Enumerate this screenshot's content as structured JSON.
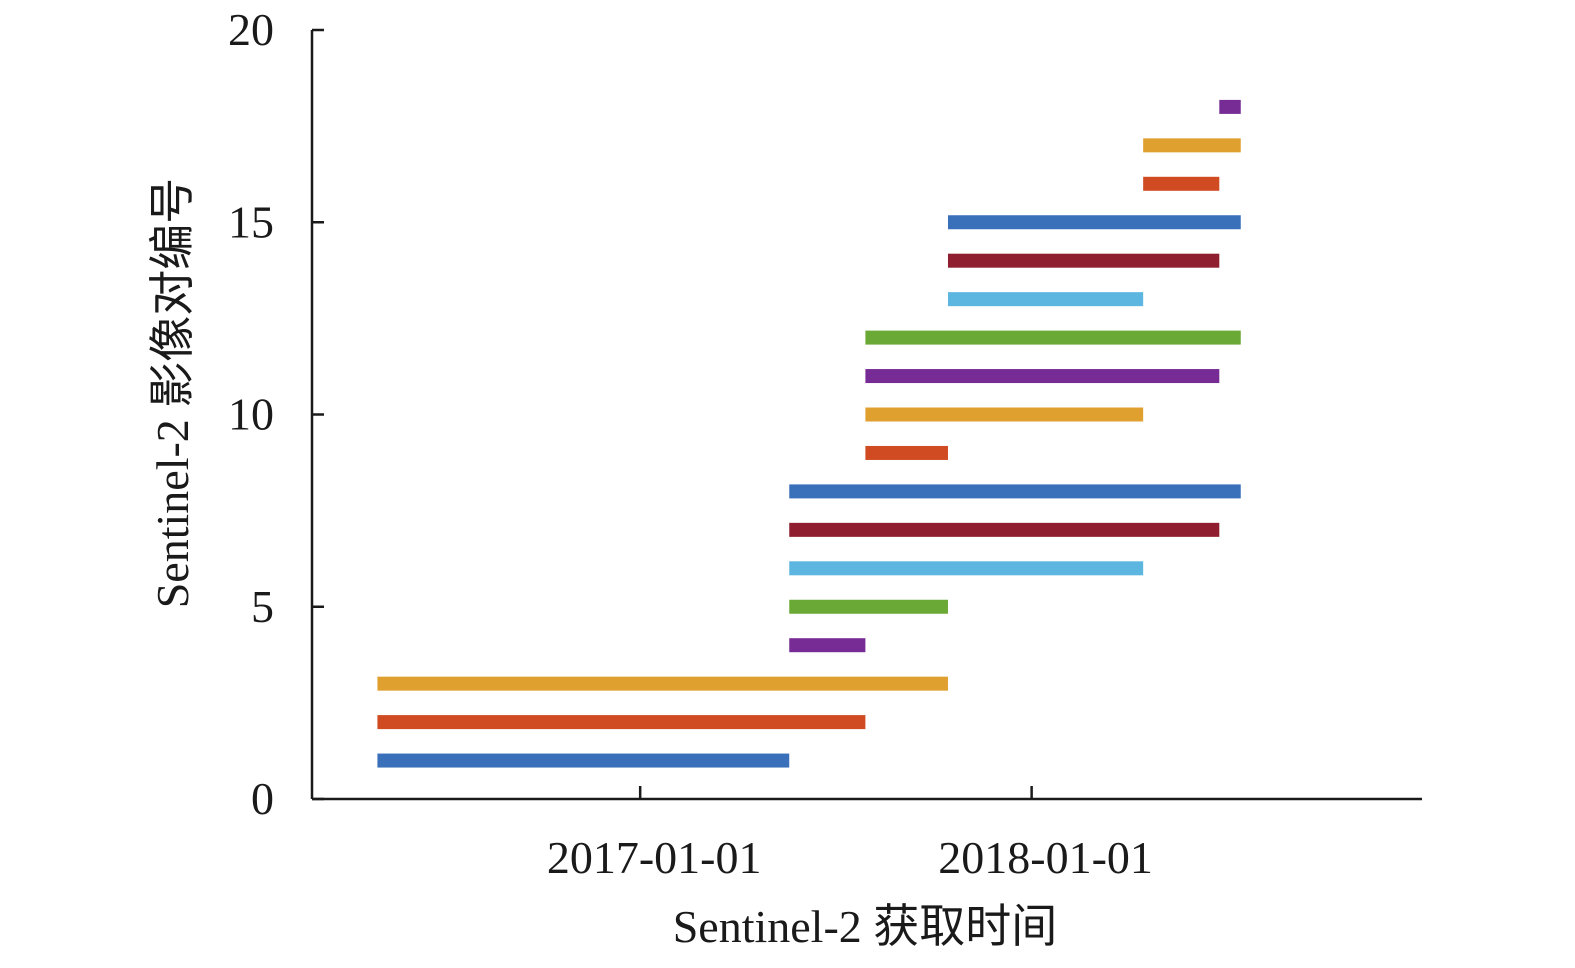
{
  "chart_data": {
    "type": "bar",
    "subtype": "gantt",
    "xlabel": "Sentinel-2 获取时间",
    "ylabel": "Sentinel-2 影像对编号",
    "ylim": [
      0,
      20
    ],
    "xlim": [
      "2016-03-01",
      "2018-12-31"
    ],
    "y_ticks": [
      0,
      5,
      10,
      15,
      20
    ],
    "x_ticks": [
      {
        "value": "2017-01-01",
        "label": "2017-01-01"
      },
      {
        "value": "2018-01-01",
        "label": "2018-01-01"
      }
    ],
    "grid": false,
    "legend": "none",
    "bars": [
      {
        "id": 1,
        "start": "2016-05-01",
        "end": "2017-05-20",
        "color": "#3a6fba"
      },
      {
        "id": 2,
        "start": "2016-05-01",
        "end": "2017-07-30",
        "color": "#d04b22"
      },
      {
        "id": 3,
        "start": "2016-05-01",
        "end": "2017-10-15",
        "color": "#e0a030"
      },
      {
        "id": 4,
        "start": "2017-05-20",
        "end": "2017-07-30",
        "color": "#772b94"
      },
      {
        "id": 5,
        "start": "2017-05-20",
        "end": "2017-10-15",
        "color": "#6aa935"
      },
      {
        "id": 6,
        "start": "2017-05-20",
        "end": "2018-04-15",
        "color": "#5db6e0"
      },
      {
        "id": 7,
        "start": "2017-05-20",
        "end": "2018-06-25",
        "color": "#8f1f30"
      },
      {
        "id": 8,
        "start": "2017-05-20",
        "end": "2018-07-15",
        "color": "#3a6fba"
      },
      {
        "id": 9,
        "start": "2017-07-30",
        "end": "2017-10-15",
        "color": "#d04b22"
      },
      {
        "id": 10,
        "start": "2017-07-30",
        "end": "2018-04-15",
        "color": "#e0a030"
      },
      {
        "id": 11,
        "start": "2017-07-30",
        "end": "2018-06-25",
        "color": "#772b94"
      },
      {
        "id": 12,
        "start": "2017-07-30",
        "end": "2018-07-15",
        "color": "#6aa935"
      },
      {
        "id": 13,
        "start": "2017-10-15",
        "end": "2018-04-15",
        "color": "#5db6e0"
      },
      {
        "id": 14,
        "start": "2017-10-15",
        "end": "2018-06-25",
        "color": "#8f1f30"
      },
      {
        "id": 15,
        "start": "2017-10-15",
        "end": "2018-07-15",
        "color": "#3a6fba"
      },
      {
        "id": 16,
        "start": "2018-04-15",
        "end": "2018-06-25",
        "color": "#d04b22"
      },
      {
        "id": 17,
        "start": "2018-04-15",
        "end": "2018-07-15",
        "color": "#e0a030"
      },
      {
        "id": 18,
        "start": "2018-06-25",
        "end": "2018-07-15",
        "color": "#772b94"
      }
    ]
  }
}
